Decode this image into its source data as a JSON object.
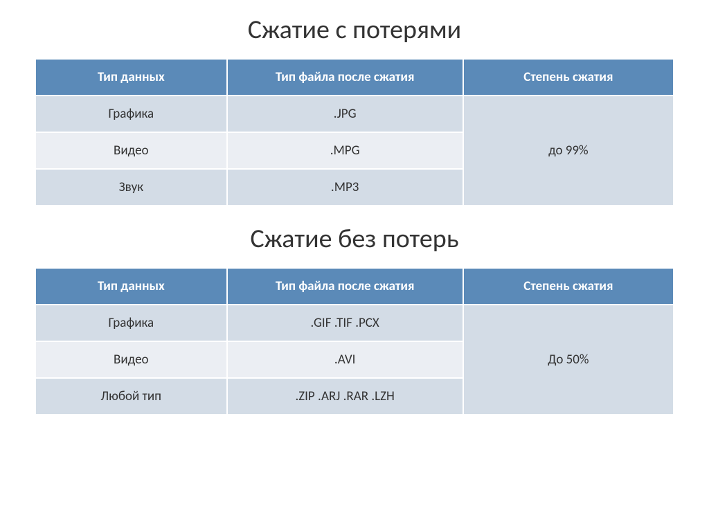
{
  "title1": "Сжатие с потерями",
  "title2": "Сжатие без  потерь",
  "table1": {
    "columns": [
      "Тип данных",
      "Тип файла после сжатия",
      "Степень сжатия"
    ],
    "rows": [
      {
        "c0": "Графика",
        "c1": ".JPG"
      },
      {
        "c0": "Видео",
        "c1": ".MPG"
      },
      {
        "c0": "Звук",
        "c1": ".MP3"
      }
    ],
    "merged_ratio": "до 99%",
    "header_bg": "#5b8ab8",
    "header_fg": "#ffffff",
    "row_odd_bg": "#d3dce6",
    "row_even_bg": "#ebeef3",
    "header_fontsize": 19,
    "cell_fontsize": 19
  },
  "table2": {
    "columns": [
      "Тип данных",
      "Тип файла после сжатия",
      "Степень сжатия"
    ],
    "rows": [
      {
        "c0": "Графика",
        "c1": ".GIF   .TIF   .PCX"
      },
      {
        "c0": "Видео",
        "c1": ".AVI"
      },
      {
        "c0": "Любой тип",
        "c1": ".ZIP   .ARJ   .RAR   .LZH"
      }
    ],
    "merged_ratio": "До 50%",
    "header_bg": "#5b8ab8",
    "header_fg": "#ffffff",
    "row_odd_bg": "#d3dce6",
    "row_even_bg": "#ebeef3",
    "header_fontsize": 19,
    "cell_fontsize": 19
  },
  "page_bg": "#ffffff",
  "title_fontsize": 38,
  "title_color": "#333333"
}
